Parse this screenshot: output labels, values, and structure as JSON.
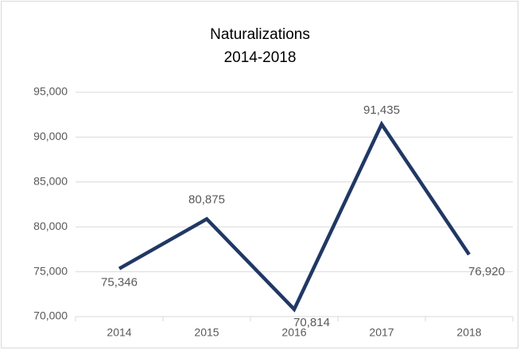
{
  "chart_data": {
    "type": "line",
    "title": "Naturalizations",
    "subtitle": "2014-2018",
    "categories": [
      "2014",
      "2015",
      "2016",
      "2017",
      "2018"
    ],
    "series": [
      {
        "name": "Naturalizations",
        "color": "#203864",
        "values": [
          75346,
          80875,
          70814,
          91435,
          76920
        ],
        "value_labels": [
          "75,346",
          "80,875",
          "70,814",
          "91,435",
          "76,920"
        ]
      }
    ],
    "ylim": [
      70000,
      95000
    ],
    "yticks": [
      {
        "value": 70000,
        "label": "70,000"
      },
      {
        "value": 75000,
        "label": "75,000"
      },
      {
        "value": 80000,
        "label": "80,000"
      },
      {
        "value": 85000,
        "label": "85,000"
      },
      {
        "value": 90000,
        "label": "90,000"
      },
      {
        "value": 95000,
        "label": "95,000"
      }
    ],
    "grid": true
  }
}
